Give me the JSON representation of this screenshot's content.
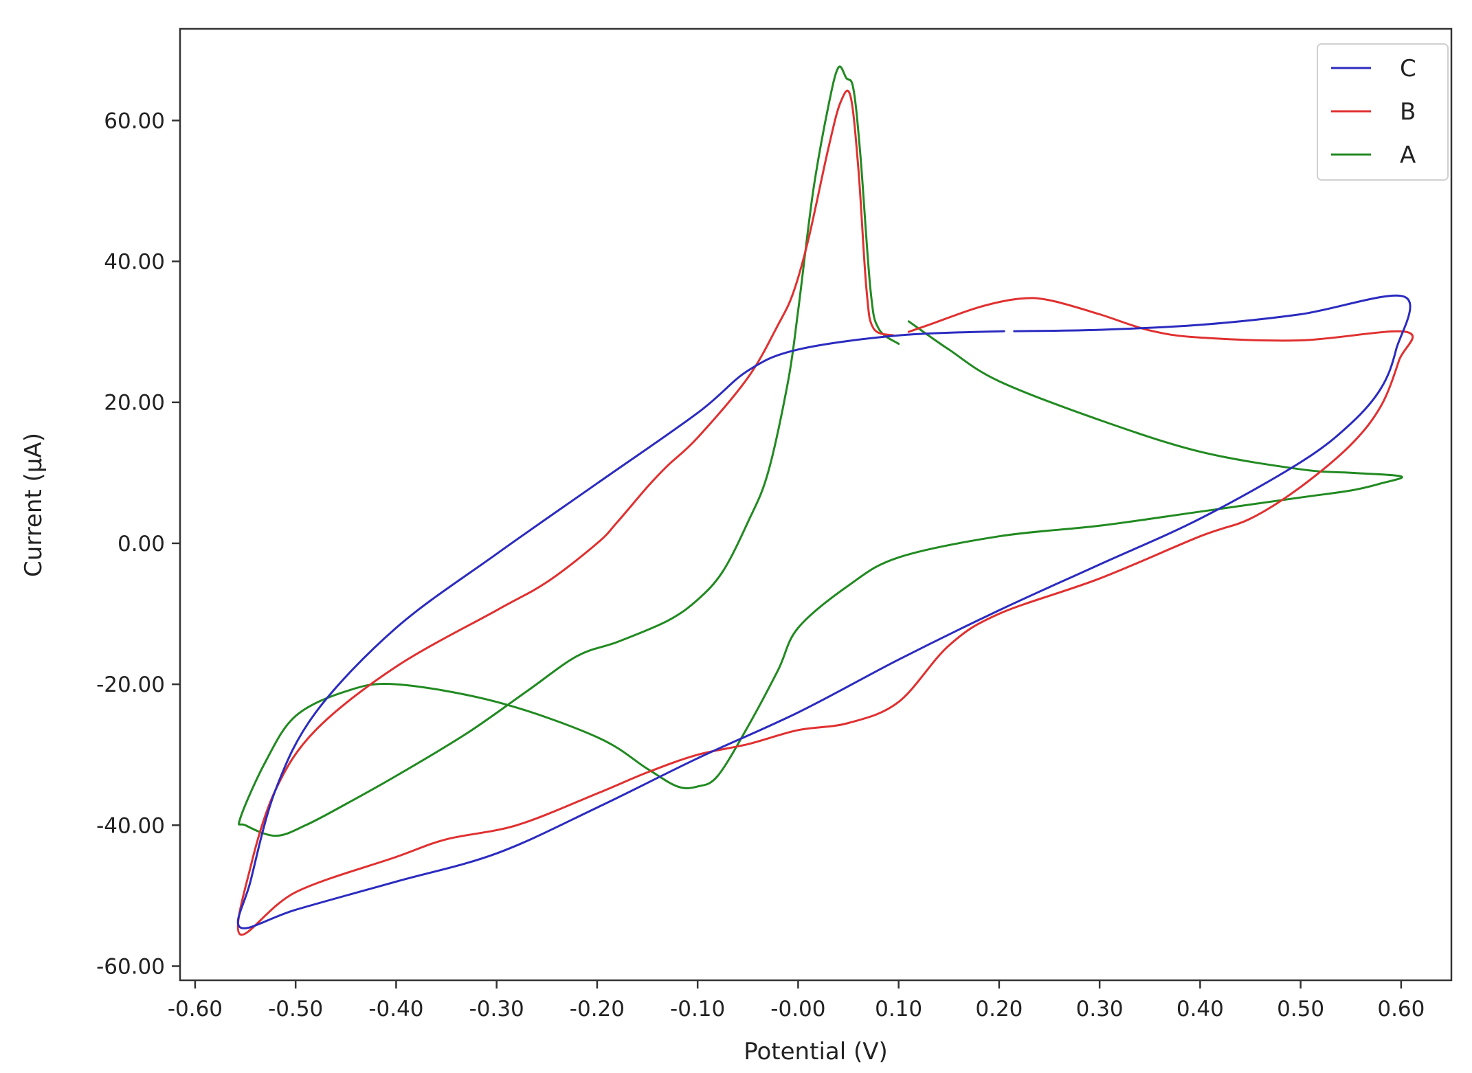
{
  "chart_data": {
    "type": "line",
    "xlabel": "Potential (V)",
    "ylabel": "Current (μA)",
    "xlim": [
      -0.615,
      0.65
    ],
    "ylim": [
      -62,
      73
    ],
    "xticks": [
      -0.6,
      -0.5,
      -0.4,
      -0.3,
      -0.2,
      -0.1,
      0.0,
      0.1,
      0.2,
      0.3,
      0.4,
      0.5,
      0.6
    ],
    "xtick_labels": [
      "-0.60",
      "-0.50",
      "-0.40",
      "-0.30",
      "-0.20",
      "-0.10",
      "-0.00",
      "0.10",
      "0.20",
      "0.30",
      "0.40",
      "0.50",
      "0.60"
    ],
    "yticks": [
      -60,
      -40,
      -20,
      0,
      20,
      40,
      60
    ],
    "ytick_labels": [
      "-60.00",
      "-40.00",
      "-20.00",
      "0.00",
      "20.00",
      "40.00",
      "60.00"
    ],
    "grid": false,
    "legend_position": "top-right",
    "series": [
      {
        "name": "C",
        "color": "#2b2bc0",
        "segments": [
          [
            [
              0.205,
              30.1
            ],
            [
              0.1,
              29.5
            ],
            [
              0.0,
              27.5
            ],
            [
              -0.05,
              24.5
            ],
            [
              -0.1,
              18.5
            ],
            [
              -0.2,
              8.5
            ],
            [
              -0.3,
              -1.5
            ],
            [
              -0.4,
              -12.0
            ],
            [
              -0.48,
              -24.0
            ],
            [
              -0.52,
              -35.0
            ],
            [
              -0.545,
              -48.0
            ],
            [
              -0.555,
              -54.5
            ],
            [
              -0.5,
              -52.0
            ],
            [
              -0.4,
              -48.0
            ],
            [
              -0.3,
              -44.0
            ],
            [
              -0.2,
              -37.5
            ],
            [
              -0.1,
              -30.5
            ],
            [
              0.0,
              -24.0
            ],
            [
              0.1,
              -16.5
            ],
            [
              0.2,
              -9.5
            ],
            [
              0.3,
              -3.0
            ],
            [
              0.4,
              3.5
            ],
            [
              0.5,
              11.5
            ],
            [
              0.55,
              17.0
            ],
            [
              0.58,
              22.0
            ],
            [
              0.595,
              27.5
            ],
            [
              0.603,
              35.0
            ],
            [
              0.5,
              32.5
            ],
            [
              0.4,
              31.0
            ],
            [
              0.3,
              30.3
            ],
            [
              0.215,
              30.1
            ]
          ]
        ]
      },
      {
        "name": "B",
        "color": "#e03030",
        "segments": [
          [
            [
              0.095,
              29.5
            ],
            [
              0.075,
              30.5
            ],
            [
              0.068,
              36.0
            ],
            [
              0.06,
              53.0
            ],
            [
              0.052,
              63.5
            ],
            [
              0.042,
              62.5
            ],
            [
              0.03,
              56.0
            ],
            [
              0.01,
              43.0
            ],
            [
              -0.005,
              35.5
            ],
            [
              -0.02,
              31.0
            ],
            [
              -0.05,
              23.5
            ],
            [
              -0.1,
              15.0
            ],
            [
              -0.13,
              11.0
            ],
            [
              -0.15,
              8.0
            ],
            [
              -0.18,
              3.0
            ],
            [
              -0.2,
              0.0
            ],
            [
              -0.25,
              -5.5
            ],
            [
              -0.3,
              -9.5
            ],
            [
              -0.4,
              -17.5
            ],
            [
              -0.48,
              -26.5
            ],
            [
              -0.52,
              -35.0
            ],
            [
              -0.545,
              -46.0
            ],
            [
              -0.555,
              -55.5
            ],
            [
              -0.5,
              -49.5
            ],
            [
              -0.4,
              -44.5
            ],
            [
              -0.35,
              -42.0
            ],
            [
              -0.28,
              -40.0
            ],
            [
              -0.2,
              -35.5
            ],
            [
              -0.15,
              -32.5
            ],
            [
              -0.1,
              -30.0
            ],
            [
              -0.05,
              -28.5
            ],
            [
              0.0,
              -26.5
            ],
            [
              0.05,
              -25.5
            ],
            [
              0.1,
              -22.5
            ],
            [
              0.15,
              -14.5
            ],
            [
              0.2,
              -10.0
            ],
            [
              0.3,
              -5.0
            ],
            [
              0.4,
              1.0
            ],
            [
              0.45,
              3.5
            ],
            [
              0.5,
              8.0
            ],
            [
              0.55,
              14.0
            ],
            [
              0.58,
              19.5
            ],
            [
              0.598,
              26.0
            ],
            [
              0.605,
              30.0
            ],
            [
              0.5,
              28.8
            ],
            [
              0.4,
              29.2
            ],
            [
              0.35,
              30.2
            ],
            [
              0.3,
              32.5
            ],
            [
              0.25,
              34.5
            ],
            [
              0.22,
              34.7
            ],
            [
              0.18,
              33.5
            ],
            [
              0.13,
              31.0
            ],
            [
              0.11,
              30.0
            ]
          ]
        ]
      },
      {
        "name": "A",
        "color": "#218a21",
        "segments": [
          [
            [
              0.1,
              28.3
            ],
            [
              0.08,
              30.5
            ],
            [
              0.072,
              36.0
            ],
            [
              0.062,
              55.0
            ],
            [
              0.055,
              64.5
            ],
            [
              0.048,
              66.0
            ],
            [
              0.04,
              67.5
            ],
            [
              0.03,
              62.0
            ],
            [
              0.015,
              50.0
            ],
            [
              0.0,
              33.0
            ],
            [
              -0.01,
              23.0
            ],
            [
              -0.03,
              10.0
            ],
            [
              -0.05,
              3.0
            ],
            [
              -0.075,
              -4.0
            ],
            [
              -0.1,
              -8.0
            ],
            [
              -0.13,
              -11.0
            ],
            [
              -0.18,
              -14.0
            ],
            [
              -0.22,
              -16.0
            ],
            [
              -0.27,
              -21.0
            ],
            [
              -0.33,
              -27.0
            ],
            [
              -0.4,
              -33.0
            ],
            [
              -0.45,
              -37.0
            ],
            [
              -0.49,
              -40.0
            ],
            [
              -0.52,
              -41.5
            ],
            [
              -0.55,
              -40.0
            ],
            [
              -0.555,
              -39.0
            ],
            [
              -0.53,
              -31.0
            ],
            [
              -0.5,
              -24.5
            ],
            [
              -0.45,
              -21.0
            ],
            [
              -0.4,
              -20.0
            ],
            [
              -0.3,
              -22.5
            ],
            [
              -0.2,
              -27.5
            ],
            [
              -0.15,
              -32.0
            ],
            [
              -0.12,
              -34.5
            ],
            [
              -0.1,
              -34.5
            ],
            [
              -0.08,
              -33.0
            ],
            [
              -0.05,
              -26.0
            ],
            [
              -0.02,
              -18.0
            ],
            [
              0.0,
              -12.0
            ],
            [
              0.05,
              -6.0
            ],
            [
              0.1,
              -2.0
            ],
            [
              0.2,
              1.0
            ],
            [
              0.3,
              2.5
            ],
            [
              0.4,
              4.5
            ],
            [
              0.5,
              6.5
            ],
            [
              0.55,
              7.5
            ],
            [
              0.58,
              8.5
            ],
            [
              0.6,
              9.5
            ],
            [
              0.55,
              10.0
            ],
            [
              0.5,
              10.5
            ],
            [
              0.4,
              13.0
            ],
            [
              0.3,
              17.5
            ],
            [
              0.2,
              23.0
            ],
            [
              0.15,
              27.5
            ],
            [
              0.11,
              31.5
            ]
          ]
        ]
      }
    ]
  }
}
